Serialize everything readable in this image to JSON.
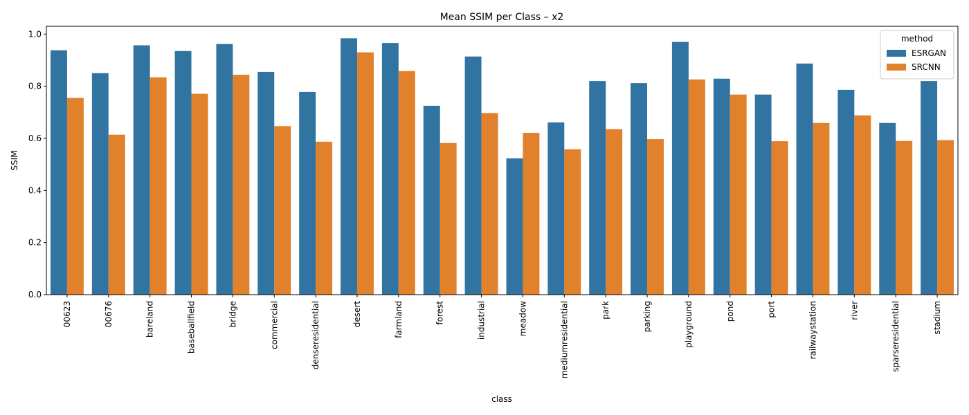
{
  "chart_data": {
    "type": "bar",
    "title": "Mean SSIM per Class – x2",
    "xlabel": "class",
    "ylabel": "SSIM",
    "ylim": [
      0,
      1.03
    ],
    "yticks": [
      "0.0",
      "0.2",
      "0.4",
      "0.6",
      "0.8",
      "1.0"
    ],
    "grid": false,
    "legend": {
      "title": "method",
      "placement": "top-right"
    },
    "categories": [
      "00623",
      "00676",
      "bareland",
      "baseballfield",
      "bridge",
      "commercial",
      "denseresidential",
      "desert",
      "farmland",
      "forest",
      "industrial",
      "meadow",
      "mediumresidential",
      "park",
      "parking",
      "playground",
      "pond",
      "port",
      "railwaystation",
      "river",
      "sparseresidential",
      "stadium"
    ],
    "series": [
      {
        "name": "ESRGAN",
        "color": "#3274a1",
        "values": [
          0.938,
          0.85,
          0.957,
          0.935,
          0.962,
          0.855,
          0.778,
          0.984,
          0.966,
          0.725,
          0.914,
          0.523,
          0.661,
          0.82,
          0.812,
          0.97,
          0.829,
          0.768,
          0.887,
          0.786,
          0.659,
          0.82
        ]
      },
      {
        "name": "SRCNN",
        "color": "#e1812c",
        "values": [
          0.755,
          0.614,
          0.834,
          0.771,
          0.844,
          0.647,
          0.587,
          0.93,
          0.858,
          0.582,
          0.697,
          0.621,
          0.558,
          0.635,
          0.597,
          0.826,
          0.768,
          0.589,
          0.659,
          0.688,
          0.59,
          0.593
        ]
      }
    ]
  }
}
